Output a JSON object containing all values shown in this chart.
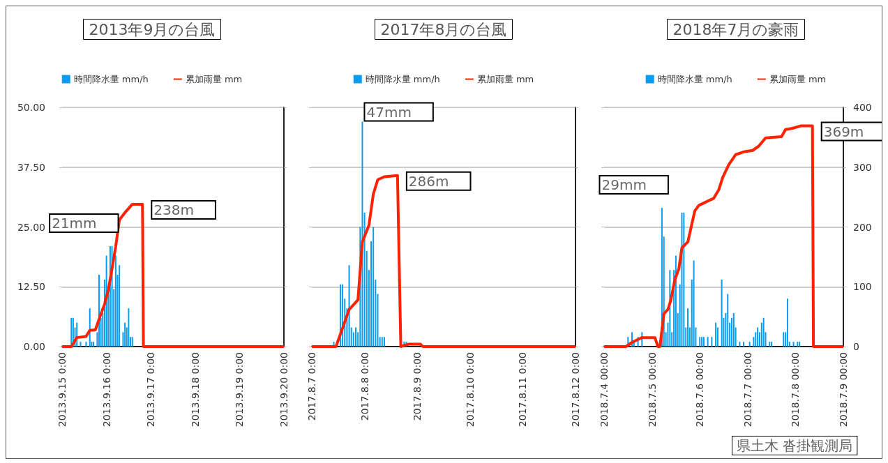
{
  "chart_data": [
    {
      "type": "bar",
      "title": "2013年9月の台風",
      "legend": "top",
      "grid": "y",
      "tick_labels": "xy",
      "xlim": [
        "2013-09-15T00:00",
        "2013-09-20T00:00"
      ],
      "xticks": [
        {
          "value": "2013-09-15T00:00",
          "label": "2013.9.15 0:00"
        },
        {
          "value": "2013-09-16T00:00",
          "label": "2013.9.16 0:00"
        },
        {
          "value": "2013-09-17T00:00",
          "label": "2013.9.17 0:00"
        },
        {
          "value": "2013-09-18T00:00",
          "label": "2013.9.18 0:00"
        },
        {
          "value": "2013-09-19T00:00",
          "label": "2013.9.19 0:00"
        },
        {
          "value": "2013-09-20T00:00",
          "label": "2013.9.20 0:00"
        }
      ],
      "ylim": [
        0,
        50
      ],
      "yticks": [
        {
          "value": 0,
          "label": "0.00"
        },
        {
          "value": 12.5,
          "label": "12.50"
        },
        {
          "value": 25,
          "label": "25.00"
        },
        {
          "value": 37.5,
          "label": "37.50"
        },
        {
          "value": 50,
          "label": "50.00"
        }
      ],
      "y2lim": [
        0,
        400
      ],
      "series": [
        {
          "name": "時間降水量 mm/h",
          "color": "#0a9cf0",
          "x": [
            "2013-09-15T05:00",
            "2013-09-15T06:00",
            "2013-09-15T07:00",
            "2013-09-15T08:00",
            "2013-09-15T10:00",
            "2013-09-15T13:00",
            "2013-09-15T15:00",
            "2013-09-15T16:00",
            "2013-09-15T17:00",
            "2013-09-15T19:00",
            "2013-09-15T20:00",
            "2013-09-15T21:00",
            "2013-09-15T22:00",
            "2013-09-15T23:00",
            "2013-09-16T00:00",
            "2013-09-16T01:00",
            "2013-09-16T02:00",
            "2013-09-16T03:00",
            "2013-09-16T04:00",
            "2013-09-16T05:00",
            "2013-09-16T06:00",
            "2013-09-16T07:00",
            "2013-09-16T09:00",
            "2013-09-16T10:00",
            "2013-09-16T11:00",
            "2013-09-16T12:00",
            "2013-09-16T13:00",
            "2013-09-16T14:00"
          ],
          "values": [
            6,
            6,
            4,
            5,
            1,
            1,
            8,
            1,
            1,
            3,
            15,
            6,
            7,
            14,
            19,
            11,
            21,
            21,
            12,
            19,
            15,
            17,
            3,
            5,
            4,
            8,
            2,
            2
          ]
        },
        {
          "name": "累加雨量 mm",
          "type": "line",
          "axis": "y2",
          "color": "#ff2200",
          "x": [
            "2013-09-15T00:00",
            "2013-09-15T05:00",
            "2013-09-15T08:00",
            "2013-09-15T13:00",
            "2013-09-15T15:00",
            "2013-09-15T18:00",
            "2013-09-15T20:30",
            "2013-09-15T23:00",
            "2013-09-16T01:00",
            "2013-09-16T03:00",
            "2013-09-16T05:00",
            "2013-09-16T07:00",
            "2013-09-16T10:00",
            "2013-09-16T12:00",
            "2013-09-16T14:00",
            "2013-09-16T19:30",
            "2013-09-16T20:00",
            "2013-09-20T00:00"
          ],
          "values": [
            0,
            0,
            15,
            17,
            27,
            28,
            50,
            71,
            95,
            130,
            167,
            212,
            224,
            231,
            238,
            238,
            0,
            0
          ]
        }
      ],
      "annotations": [
        "21mm",
        "238m"
      ]
    },
    {
      "type": "bar",
      "title": "2017年8月の台風",
      "legend": "top",
      "grid": "y",
      "tick_labels": "x",
      "xlim": [
        "2017-08-07T00:00",
        "2017-08-12T00:00"
      ],
      "xticks": [
        {
          "value": "2017-08-07T00:00",
          "label": "2017.8.7 0:00"
        },
        {
          "value": "2017-08-08T00:00",
          "label": "2017.8.8 0:00"
        },
        {
          "value": "2017-08-09T00:00",
          "label": "2017.8.9 0:00"
        },
        {
          "value": "2017-08-10T00:00",
          "label": "2017.8.10 0:00"
        },
        {
          "value": "2017-08-11T00:00",
          "label": "2017.8.11 0:00"
        },
        {
          "value": "2017-08-12T00:00",
          "label": "2017.8.12 0:00"
        }
      ],
      "ylim": [
        0,
        50
      ],
      "y2lim": [
        0,
        400
      ],
      "series": [
        {
          "name": "時間降水量 mm/h",
          "color": "#0a9cf0",
          "x": [
            "2017-08-07T10:00",
            "2017-08-07T13:00",
            "2017-08-07T14:00",
            "2017-08-07T15:00",
            "2017-08-07T16:00",
            "2017-08-07T17:00",
            "2017-08-07T18:00",
            "2017-08-07T19:00",
            "2017-08-07T20:00",
            "2017-08-07T21:00",
            "2017-08-07T22:00",
            "2017-08-07T23:00",
            "2017-08-08T00:00",
            "2017-08-08T01:00",
            "2017-08-08T02:00",
            "2017-08-08T03:00",
            "2017-08-08T04:00",
            "2017-08-08T05:00",
            "2017-08-08T06:00",
            "2017-08-08T07:00",
            "2017-08-08T08:00",
            "2017-08-08T09:00",
            "2017-08-08T18:00",
            "2017-08-08T19:00"
          ],
          "values": [
            1,
            13,
            13,
            10,
            8,
            17,
            4,
            3,
            4,
            3,
            25,
            47,
            28,
            20,
            16,
            22,
            25,
            14,
            11,
            2,
            2,
            2,
            1,
            1
          ]
        },
        {
          "name": "累加雨量 mm",
          "type": "line",
          "axis": "y2",
          "color": "#ff2200",
          "x": [
            "2017-08-07T00:00",
            "2017-08-07T11:00",
            "2017-08-07T17:00",
            "2017-08-07T21:00",
            "2017-08-07T23:00",
            "2017-08-08T02:00",
            "2017-08-08T04:00",
            "2017-08-08T06:00",
            "2017-08-08T09:00",
            "2017-08-08T15:00",
            "2017-08-08T16:30",
            "2017-08-08T20:00",
            "2017-08-09T01:30",
            "2017-08-09T02:30",
            "2017-08-12T00:00"
          ],
          "values": [
            0,
            0,
            62,
            78,
            175,
            203,
            255,
            279,
            284,
            286,
            0,
            4,
            4,
            0,
            0
          ]
        }
      ],
      "annotations": [
        "47mm",
        "286m"
      ]
    },
    {
      "type": "bar",
      "title": "2018年7月の豪雨",
      "legend": "top",
      "grid": "y",
      "tick_labels": "xy2",
      "xlim": [
        "2018-07-04T00:00",
        "2018-07-09T00:00"
      ],
      "xticks": [
        {
          "value": "2018-07-04T00:00",
          "label": "2018.7.4 00:00"
        },
        {
          "value": "2018-07-05T00:00",
          "label": "2018.7.5 00:00"
        },
        {
          "value": "2018-07-06T00:00",
          "label": "2018.7.6 00:00"
        },
        {
          "value": "2018-07-07T00:00",
          "label": "2018.7.7 00:00"
        },
        {
          "value": "2018-07-08T00:00",
          "label": "2018.7.8 00:00"
        },
        {
          "value": "2018-07-09T00:00",
          "label": "2018.7.9 00:00"
        }
      ],
      "ylim": [
        0,
        50
      ],
      "y2lim": [
        0,
        400
      ],
      "y2ticks": [
        0,
        100,
        200,
        300,
        400
      ],
      "series": [
        {
          "name": "時間降水量 mm/h",
          "color": "#0a9cf0",
          "x": [
            "2018-07-04T12:00",
            "2018-07-04T14:00",
            "2018-07-04T15:00",
            "2018-07-04T17:00",
            "2018-07-04T19:00",
            "2018-07-05T05:00",
            "2018-07-05T06:00",
            "2018-07-05T07:00",
            "2018-07-05T08:00",
            "2018-07-05T09:00",
            "2018-07-05T10:00",
            "2018-07-05T11:00",
            "2018-07-05T12:00",
            "2018-07-05T13:00",
            "2018-07-05T14:00",
            "2018-07-05T15:00",
            "2018-07-05T16:00",
            "2018-07-05T17:00",
            "2018-07-05T18:00",
            "2018-07-05T19:00",
            "2018-07-05T20:00",
            "2018-07-05T21:00",
            "2018-07-05T22:00",
            "2018-07-06T00:00",
            "2018-07-06T01:00",
            "2018-07-06T02:00",
            "2018-07-06T04:00",
            "2018-07-06T06:00",
            "2018-07-06T08:00",
            "2018-07-06T09:00",
            "2018-07-06T11:00",
            "2018-07-06T12:00",
            "2018-07-06T13:00",
            "2018-07-06T14:00",
            "2018-07-06T15:00",
            "2018-07-06T16:00",
            "2018-07-06T17:00",
            "2018-07-06T18:00",
            "2018-07-06T20:00",
            "2018-07-06T22:00",
            "2018-07-07T01:00",
            "2018-07-07T03:00",
            "2018-07-07T04:00",
            "2018-07-07T05:00",
            "2018-07-07T06:00",
            "2018-07-07T07:00",
            "2018-07-07T08:00",
            "2018-07-07T09:00",
            "2018-07-07T11:00",
            "2018-07-07T12:00",
            "2018-07-07T18:00",
            "2018-07-07T19:00",
            "2018-07-07T20:00",
            "2018-07-07T21:00",
            "2018-07-07T23:00",
            "2018-07-08T01:00",
            "2018-07-08T02:00"
          ],
          "values": [
            2,
            3,
            1,
            2,
            3,
            29,
            23,
            3,
            5,
            16,
            3,
            16,
            19,
            7,
            13,
            28,
            28,
            4,
            8,
            4,
            14,
            18,
            4,
            2,
            2,
            2,
            2,
            2,
            5,
            4,
            14,
            6,
            7,
            11,
            5,
            6,
            7,
            4,
            1,
            1,
            1,
            2,
            3,
            4,
            3,
            5,
            6,
            3,
            1,
            1,
            3,
            3,
            10,
            1,
            1,
            1,
            1
          ]
        },
        {
          "name": "累加雨量 mm",
          "type": "line",
          "axis": "y2",
          "color": "#ff2200",
          "x": [
            "2018-07-04T00:00",
            "2018-07-04T11:00",
            "2018-07-04T14:00",
            "2018-07-04T19:00",
            "2018-07-05T01:30",
            "2018-07-05T03:00",
            "2018-07-05T04:00",
            "2018-07-05T06:00",
            "2018-07-05T08:00",
            "2018-07-05T09:30",
            "2018-07-05T11:30",
            "2018-07-05T13:30",
            "2018-07-05T15:00",
            "2018-07-05T18:00",
            "2018-07-05T21:30",
            "2018-07-05T23:30",
            "2018-07-06T07:00",
            "2018-07-06T09:30",
            "2018-07-06T11:30",
            "2018-07-06T14:30",
            "2018-07-06T18:00",
            "2018-07-06T22:30",
            "2018-07-07T02:30",
            "2018-07-07T05:30",
            "2018-07-07T09:00",
            "2018-07-07T17:00",
            "2018-07-07T19:00",
            "2018-07-07T22:30",
            "2018-07-08T02:30",
            "2018-07-08T08:30",
            "2018-07-08T09:00",
            "2018-07-09T00:00"
          ],
          "values": [
            0,
            0,
            7,
            15,
            15,
            0,
            0,
            55,
            62,
            78,
            112,
            130,
            165,
            175,
            227,
            236,
            248,
            262,
            283,
            304,
            321,
            326,
            328,
            335,
            349,
            351,
            363,
            365,
            369,
            369,
            0,
            0
          ]
        }
      ],
      "annotations": [
        "29mm",
        "369m",
        "県土木 沓掛観測局"
      ]
    }
  ]
}
